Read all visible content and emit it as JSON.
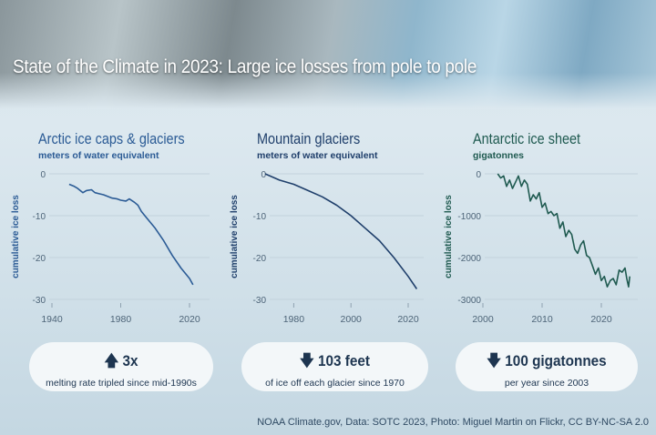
{
  "title": "State of the Climate in 2023: Large ice losses from pole to pole",
  "credit": "NOAA Climate.gov, Data: SOTC 2023, Photo: Miguel Martin on Flickr, CC BY-NC-SA 2.0",
  "colors": {
    "arctic": "#2b5b95",
    "mountain": "#1f3f6b",
    "antarctic": "#1f5a50"
  },
  "chart_data": [
    {
      "type": "line",
      "title": "Arctic ice caps & glaciers",
      "subtitle": "meters of water equivalent",
      "ylabel": "cumulative ice loss",
      "xlim": [
        1940,
        2025
      ],
      "ylim": [
        -30,
        0
      ],
      "xticks": [
        "1940",
        "1980",
        "2020"
      ],
      "yticks": [
        "0",
        "-10",
        "-20",
        "-30"
      ],
      "grid": true,
      "x": [
        1950,
        1953,
        1955,
        1958,
        1960,
        1963,
        1965,
        1968,
        1970,
        1975,
        1978,
        1980,
        1983,
        1985,
        1988,
        1990,
        1992,
        1995,
        2000,
        2005,
        2010,
        2015,
        2020,
        2022
      ],
      "y": [
        -2.5,
        -3,
        -3.5,
        -4.5,
        -4,
        -3.8,
        -4.5,
        -4.8,
        -5,
        -5.8,
        -6,
        -6.3,
        -6.5,
        -6,
        -6.8,
        -7.5,
        -9,
        -10.5,
        -13,
        -16,
        -19.5,
        -22.5,
        -25,
        -26.5
      ],
      "callout": {
        "icon": "arrow-up",
        "value": "3x",
        "text": "melting rate tripled since mid-1990s"
      }
    },
    {
      "type": "line",
      "title": "Mountain glaciers",
      "subtitle": "meters of water equivalent",
      "ylabel": "cumulative ice loss",
      "xlim": [
        1970,
        2025
      ],
      "ylim": [
        -30,
        0
      ],
      "xticks": [
        "1980",
        "2000",
        "2020"
      ],
      "yticks": [
        "0",
        "-10",
        "-20",
        "-30"
      ],
      "grid": true,
      "x": [
        1970,
        1975,
        1980,
        1985,
        1990,
        1995,
        2000,
        2005,
        2010,
        2015,
        2020,
        2023
      ],
      "y": [
        0,
        -1.5,
        -2.5,
        -4,
        -5.5,
        -7.5,
        -10,
        -13,
        -16,
        -20,
        -24.5,
        -27.5
      ],
      "callout": {
        "icon": "arrow-down",
        "value": "103 feet",
        "text": "of ice off each glacier since 1970"
      }
    },
    {
      "type": "line",
      "title": "Antarctic ice sheet",
      "subtitle": "gigatonnes",
      "ylabel": "cumulative ice loss",
      "xlim": [
        2000,
        2025
      ],
      "ylim": [
        -3000,
        0
      ],
      "xticks": [
        "2000",
        "2010",
        "2020"
      ],
      "yticks": [
        "0",
        "-1000",
        "-2000",
        "-3000"
      ],
      "grid": true,
      "x": [
        2002.5,
        2003,
        2003.5,
        2004,
        2004.5,
        2005,
        2005.5,
        2006,
        2006.5,
        2007,
        2007.5,
        2008,
        2008.5,
        2009,
        2009.5,
        2010,
        2010.5,
        2011,
        2011.5,
        2012,
        2012.5,
        2013,
        2013.5,
        2014,
        2014.5,
        2015,
        2015.5,
        2016,
        2016.5,
        2017,
        2017.5,
        2018,
        2018.5,
        2019,
        2019.5,
        2020,
        2020.5,
        2021,
        2021.5,
        2022,
        2022.5,
        2023,
        2023.5,
        2024,
        2024.3,
        2024.6,
        2024.8
      ],
      "y": [
        0,
        -100,
        -50,
        -300,
        -150,
        -350,
        -200,
        -50,
        -300,
        -150,
        -250,
        -650,
        -500,
        -600,
        -450,
        -800,
        -700,
        -950,
        -900,
        -1000,
        -950,
        -1300,
        -1150,
        -1500,
        -1350,
        -1450,
        -1800,
        -1900,
        -1700,
        -1600,
        -1950,
        -2000,
        -2200,
        -2400,
        -2250,
        -2550,
        -2450,
        -2700,
        -2550,
        -2500,
        -2650,
        -2300,
        -2350,
        -2250,
        -2500,
        -2700,
        -2450
      ],
      "callout": {
        "icon": "arrow-down",
        "value": "100 gigatonnes",
        "text": "per year since 2003"
      }
    }
  ]
}
